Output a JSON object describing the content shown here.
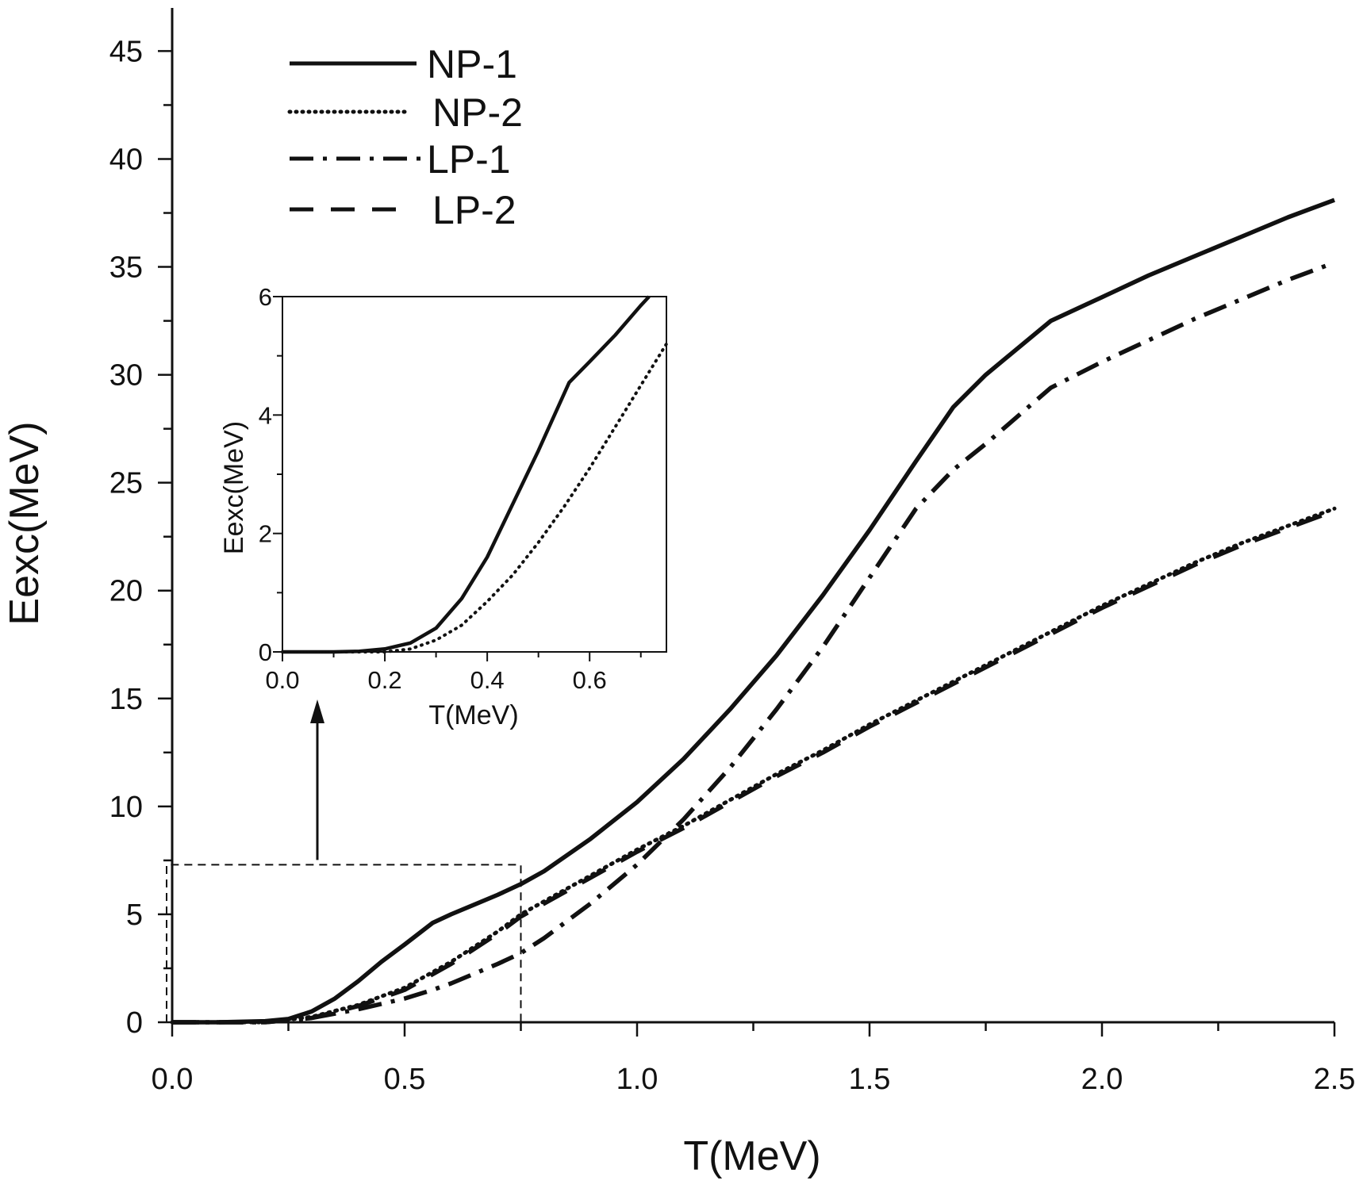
{
  "colors": {
    "ink": "#111111",
    "background": "#ffffff"
  },
  "chart_data": [
    {
      "type": "line",
      "xlabel": "T(MeV)",
      "ylabel": "Eexc(MeV)",
      "xlim": [
        0,
        2.5
      ],
      "ylim": [
        0,
        47
      ],
      "x_ticks": [
        "0.0",
        "0.5",
        "1.0",
        "1.5",
        "2.0",
        "2.5"
      ],
      "y_ticks": [
        "0",
        "5",
        "10",
        "15",
        "20",
        "25",
        "30",
        "35",
        "40",
        "45"
      ],
      "grid": false,
      "legend_position": "top-left",
      "series": [
        {
          "name": "NP-1",
          "style": "solid",
          "x": [
            0,
            0.1,
            0.2,
            0.25,
            0.3,
            0.35,
            0.4,
            0.45,
            0.5,
            0.56,
            0.6,
            0.7,
            0.75,
            0.8,
            0.9,
            1.0,
            1.1,
            1.2,
            1.3,
            1.4,
            1.5,
            1.6,
            1.68,
            1.75,
            1.89,
            2.0,
            2.1,
            2.2,
            2.3,
            2.4,
            2.5
          ],
          "y": [
            0,
            0,
            0.05,
            0.15,
            0.5,
            1.1,
            1.9,
            2.8,
            3.6,
            4.6,
            5.0,
            5.9,
            6.4,
            7.0,
            8.5,
            10.2,
            12.2,
            14.5,
            17.0,
            19.8,
            22.8,
            26.0,
            28.5,
            30.0,
            32.5,
            33.6,
            34.6,
            35.5,
            36.4,
            37.3,
            38.1
          ]
        },
        {
          "name": "NP-2",
          "style": "dotted",
          "x": [
            0,
            0.2,
            0.3,
            0.4,
            0.5,
            0.6,
            0.7,
            0.75,
            0.8,
            0.9,
            1.0,
            1.1,
            1.2,
            1.3,
            1.4,
            1.5,
            1.6,
            1.7,
            1.8,
            1.9,
            2.0,
            2.1,
            2.2,
            2.3,
            2.4,
            2.5
          ],
          "y": [
            0,
            0,
            0.25,
            0.8,
            1.6,
            2.8,
            4.2,
            5.0,
            5.6,
            6.8,
            8.0,
            9.1,
            10.3,
            11.5,
            12.6,
            13.8,
            14.9,
            16.0,
            17.1,
            18.2,
            19.3,
            20.3,
            21.3,
            22.2,
            23.0,
            23.8
          ]
        },
        {
          "name": "LP-1",
          "style": "dash-dot",
          "x": [
            0,
            0.2,
            0.3,
            0.4,
            0.5,
            0.56,
            0.6,
            0.7,
            0.75,
            0.8,
            0.9,
            1.0,
            1.1,
            1.2,
            1.3,
            1.4,
            1.5,
            1.6,
            1.68,
            1.75,
            1.89,
            2.0,
            2.1,
            2.2,
            2.3,
            2.4,
            2.5
          ],
          "y": [
            0,
            0,
            0.2,
            0.6,
            1.1,
            1.5,
            1.8,
            2.7,
            3.2,
            3.9,
            5.5,
            7.3,
            9.4,
            11.8,
            14.5,
            17.4,
            20.6,
            23.8,
            25.6,
            26.8,
            29.4,
            30.6,
            31.6,
            32.6,
            33.5,
            34.4,
            35.2
          ]
        },
        {
          "name": "LP-2",
          "style": "dashed",
          "x": [
            0,
            0.2,
            0.3,
            0.4,
            0.5,
            0.6,
            0.7,
            0.75,
            0.8,
            0.9,
            1.0,
            1.1,
            1.2,
            1.3,
            1.4,
            1.5,
            1.6,
            1.7,
            1.8,
            1.9,
            2.0,
            2.1,
            2.2,
            2.3,
            2.4,
            2.5
          ],
          "y": [
            0,
            0,
            0.2,
            0.75,
            1.5,
            2.7,
            4.1,
            4.9,
            5.5,
            6.7,
            7.9,
            9.0,
            10.2,
            11.4,
            12.5,
            13.7,
            14.8,
            15.9,
            17.0,
            18.1,
            19.2,
            20.2,
            21.2,
            22.1,
            22.9,
            23.7
          ]
        }
      ],
      "zoom_region": {
        "x": [
          0,
          0.75
        ],
        "y": [
          0,
          7.3
        ]
      }
    },
    {
      "type": "line",
      "xlabel": "T(MeV)",
      "ylabel": "Eexc(MeV)",
      "xlim": [
        0,
        0.75
      ],
      "ylim": [
        0,
        6
      ],
      "x_ticks": [
        "0.0",
        "0.2",
        "0.4",
        "0.6"
      ],
      "y_ticks": [
        "0",
        "2",
        "4",
        "6"
      ],
      "grid": false,
      "series": [
        {
          "style": "solid",
          "x": [
            0,
            0.1,
            0.15,
            0.2,
            0.25,
            0.3,
            0.35,
            0.4,
            0.45,
            0.5,
            0.56,
            0.6,
            0.65,
            0.7,
            0.716
          ],
          "y": [
            0,
            0,
            0.01,
            0.05,
            0.15,
            0.4,
            0.9,
            1.6,
            2.5,
            3.4,
            4.55,
            4.9,
            5.35,
            5.85,
            6.0
          ]
        },
        {
          "style": "dotted",
          "x": [
            0,
            0.2,
            0.25,
            0.3,
            0.35,
            0.4,
            0.45,
            0.5,
            0.55,
            0.6,
            0.65,
            0.7,
            0.75
          ],
          "y": [
            0,
            0,
            0.05,
            0.2,
            0.45,
            0.85,
            1.3,
            1.85,
            2.45,
            3.1,
            3.8,
            4.5,
            5.2
          ]
        }
      ]
    }
  ]
}
